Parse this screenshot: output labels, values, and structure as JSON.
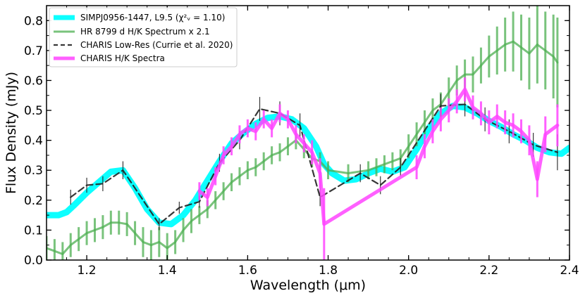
{
  "chart_data": {
    "type": "line",
    "xlabel": "Wavelength (μm)",
    "ylabel": "Flux Density (mJy)",
    "xlim": [
      1.1,
      2.4
    ],
    "ylim": [
      0.0,
      0.85
    ],
    "xticks": [
      "1.2",
      "1.4",
      "1.6",
      "1.8",
      "2.0",
      "2.2",
      "2.4"
    ],
    "yticks": [
      "0.0",
      "0.1",
      "0.2",
      "0.3",
      "0.4",
      "0.5",
      "0.6",
      "0.7",
      "0.8"
    ],
    "grid": false,
    "legend_position": "top-left",
    "series": [
      {
        "name": "SIMPJ0956-1447, L9.5 (χ²ᵥ = 1.10)",
        "color": "#00ffff",
        "style": "thick-solid",
        "x": [
          1.1,
          1.13,
          1.15,
          1.17,
          1.2,
          1.23,
          1.26,
          1.29,
          1.32,
          1.35,
          1.38,
          1.41,
          1.44,
          1.47,
          1.5,
          1.53,
          1.56,
          1.59,
          1.62,
          1.65,
          1.68,
          1.71,
          1.74,
          1.77,
          1.79,
          1.81,
          1.84,
          1.87,
          1.9,
          1.93,
          1.96,
          1.99,
          2.02,
          2.05,
          2.08,
          2.11,
          2.14,
          2.17,
          2.2,
          2.23,
          2.26,
          2.29,
          2.32,
          2.35,
          2.38,
          2.4
        ],
        "y": [
          0.15,
          0.15,
          0.16,
          0.185,
          0.225,
          0.26,
          0.295,
          0.3,
          0.24,
          0.17,
          0.125,
          0.12,
          0.15,
          0.2,
          0.265,
          0.33,
          0.39,
          0.425,
          0.455,
          0.475,
          0.48,
          0.47,
          0.44,
          0.38,
          0.32,
          0.29,
          0.265,
          0.27,
          0.29,
          0.305,
          0.295,
          0.31,
          0.37,
          0.44,
          0.49,
          0.515,
          0.51,
          0.49,
          0.465,
          0.445,
          0.42,
          0.4,
          0.375,
          0.36,
          0.355,
          0.375
        ]
      },
      {
        "name": "HR 8799 d H/K Spectrum x 2.1",
        "color": "#4caf50",
        "style": "solid-errorbars",
        "x": [
          1.1,
          1.12,
          1.14,
          1.16,
          1.18,
          1.2,
          1.22,
          1.24,
          1.26,
          1.28,
          1.3,
          1.32,
          1.34,
          1.36,
          1.38,
          1.4,
          1.42,
          1.44,
          1.46,
          1.48,
          1.5,
          1.52,
          1.54,
          1.56,
          1.58,
          1.6,
          1.62,
          1.64,
          1.66,
          1.68,
          1.7,
          1.72,
          1.74,
          1.76,
          1.78,
          1.8,
          1.85,
          1.9,
          1.92,
          1.94,
          1.96,
          1.98,
          2.0,
          2.02,
          2.04,
          2.06,
          2.08,
          2.1,
          2.12,
          2.14,
          2.16,
          2.18,
          2.2,
          2.22,
          2.24,
          2.26,
          2.28,
          2.3,
          2.32,
          2.34,
          2.36,
          2.37
        ],
        "y": [
          0.04,
          0.03,
          0.02,
          0.05,
          0.07,
          0.09,
          0.1,
          0.11,
          0.125,
          0.125,
          0.12,
          0.09,
          0.06,
          0.05,
          0.06,
          0.04,
          0.06,
          0.1,
          0.13,
          0.15,
          0.17,
          0.2,
          0.23,
          0.26,
          0.28,
          0.3,
          0.31,
          0.33,
          0.35,
          0.36,
          0.38,
          0.4,
          0.37,
          0.34,
          0.33,
          0.3,
          0.29,
          0.3,
          0.31,
          0.32,
          0.33,
          0.34,
          0.38,
          0.42,
          0.46,
          0.5,
          0.52,
          0.56,
          0.6,
          0.62,
          0.62,
          0.65,
          0.68,
          0.7,
          0.72,
          0.73,
          0.71,
          0.69,
          0.72,
          0.7,
          0.68,
          0.66
        ],
        "yerr": [
          0.04,
          0.04,
          0.04,
          0.04,
          0.04,
          0.04,
          0.04,
          0.04,
          0.04,
          0.04,
          0.04,
          0.04,
          0.05,
          0.05,
          0.05,
          0.05,
          0.04,
          0.04,
          0.04,
          0.03,
          0.03,
          0.03,
          0.03,
          0.03,
          0.03,
          0.03,
          0.03,
          0.03,
          0.03,
          0.03,
          0.03,
          0.03,
          0.03,
          0.03,
          0.03,
          0.03,
          0.03,
          0.03,
          0.03,
          0.03,
          0.03,
          0.03,
          0.04,
          0.04,
          0.04,
          0.04,
          0.04,
          0.05,
          0.05,
          0.05,
          0.06,
          0.06,
          0.07,
          0.08,
          0.09,
          0.1,
          0.11,
          0.12,
          0.13,
          0.13,
          0.14,
          0.15
        ]
      },
      {
        "name": "CHARIS Low-Res (Currie et al. 2020)",
        "color": "#222222",
        "style": "dashed-errorbars",
        "x": [
          1.16,
          1.2,
          1.24,
          1.29,
          1.38,
          1.43,
          1.48,
          1.53,
          1.58,
          1.63,
          1.68,
          1.73,
          1.78,
          1.88,
          1.93,
          1.98,
          2.08,
          2.14,
          2.19,
          2.25,
          2.31,
          2.37
        ],
        "y": [
          0.21,
          0.25,
          0.255,
          0.3,
          0.12,
          0.175,
          0.195,
          0.325,
          0.4,
          0.505,
          0.49,
          0.45,
          0.21,
          0.29,
          0.25,
          0.31,
          0.515,
          0.52,
          0.47,
          0.43,
          0.385,
          0.36
        ],
        "yerr": [
          0.025,
          0.025,
          0.025,
          0.03,
          0.02,
          0.02,
          0.02,
          0.03,
          0.03,
          0.04,
          0.04,
          0.04,
          0.03,
          0.03,
          0.03,
          0.03,
          0.04,
          0.04,
          0.04,
          0.04,
          0.04,
          0.06
        ]
      },
      {
        "name": "CHARIS H/K Spectra",
        "color": "#ff44ff",
        "style": "thick-solid-errorbars",
        "x": [
          1.48,
          1.5,
          1.52,
          1.54,
          1.56,
          1.58,
          1.6,
          1.62,
          1.64,
          1.66,
          1.68,
          1.7,
          1.72,
          1.74,
          1.76,
          1.78,
          1.79,
          2.02,
          2.04,
          2.06,
          2.08,
          2.1,
          2.12,
          2.14,
          2.16,
          2.18,
          2.2,
          2.22,
          2.24,
          2.26,
          2.28,
          2.3,
          2.32,
          2.34,
          2.37
        ],
        "y": [
          0.23,
          0.21,
          0.28,
          0.35,
          0.38,
          0.42,
          0.44,
          0.43,
          0.47,
          0.44,
          0.49,
          0.47,
          0.42,
          0.39,
          0.36,
          0.29,
          0.12,
          0.31,
          0.38,
          0.43,
          0.47,
          0.5,
          0.53,
          0.57,
          0.51,
          0.49,
          0.46,
          0.48,
          0.46,
          0.45,
          0.43,
          0.4,
          0.27,
          0.42,
          0.45
        ],
        "yerr": [
          0.03,
          0.03,
          0.03,
          0.03,
          0.03,
          0.03,
          0.03,
          0.03,
          0.03,
          0.03,
          0.03,
          0.03,
          0.03,
          0.03,
          0.04,
          0.05,
          0.12,
          0.04,
          0.04,
          0.04,
          0.04,
          0.04,
          0.04,
          0.04,
          0.04,
          0.04,
          0.04,
          0.04,
          0.04,
          0.04,
          0.04,
          0.05,
          0.06,
          0.06,
          0.07
        ]
      }
    ]
  }
}
